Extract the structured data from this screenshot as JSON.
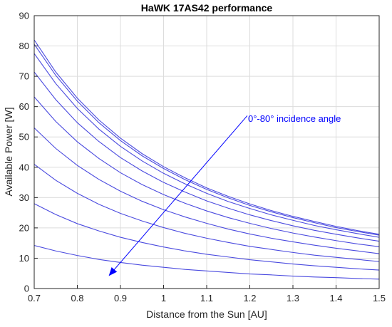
{
  "chart_data": {
    "type": "line",
    "title": "HaWK 17AS42 performance",
    "xlabel": "Distance from the Sun [AU]",
    "ylabel": "Available Power [W]",
    "xlim": [
      0.7,
      1.5
    ],
    "ylim": [
      0,
      90
    ],
    "xticks": [
      "0.7",
      "0.8",
      "0.9",
      "1",
      "1.1",
      "1.2",
      "1.3",
      "1.4",
      "1.5"
    ],
    "yticks": [
      "0",
      "10",
      "20",
      "30",
      "40",
      "50",
      "60",
      "70",
      "80",
      "90"
    ],
    "grid": true,
    "line_color": "#4a4adf",
    "annotation": {
      "text": "0°-80° incidence angle",
      "color": "#0000ff",
      "arrow_from": [
        1.194,
        57.0
      ],
      "arrow_to": [
        0.875,
        4.5
      ]
    },
    "x": [
      0.7,
      0.75,
      0.8,
      0.85,
      0.9,
      0.95,
      1.0,
      1.05,
      1.1,
      1.15,
      1.2,
      1.25,
      1.3,
      1.35,
      1.4,
      1.45,
      1.5
    ],
    "series": [
      {
        "values": [
          82.0,
          71.4,
          62.8,
          55.6,
          49.6,
          44.5,
          40.2,
          36.5,
          33.2,
          30.4,
          27.9,
          25.7,
          23.8,
          22.1,
          20.5,
          19.1,
          17.9
        ]
      },
      {
        "values": [
          80.6,
          70.3,
          61.8,
          54.7,
          48.8,
          43.8,
          39.6,
          35.9,
          32.7,
          29.9,
          27.4,
          25.3,
          23.4,
          21.7,
          20.1,
          18.8,
          17.6
        ]
      },
      {
        "values": [
          77.5,
          67.6,
          59.4,
          52.6,
          46.9,
          42.1,
          38.0,
          34.5,
          31.4,
          28.7,
          26.4,
          24.3,
          22.5,
          20.8,
          19.4,
          18.1,
          16.9
        ]
      },
      {
        "values": [
          71.4,
          62.3,
          54.7,
          48.5,
          43.2,
          38.8,
          35.0,
          31.8,
          28.9,
          26.5,
          24.3,
          22.4,
          20.7,
          19.2,
          17.9,
          16.7,
          15.6
        ]
      },
      {
        "values": [
          63.2,
          55.1,
          48.4,
          42.9,
          38.2,
          34.3,
          31.0,
          28.1,
          25.6,
          23.4,
          21.5,
          19.8,
          18.3,
          17.0,
          15.8,
          14.7,
          13.8
        ]
      },
      {
        "values": [
          53.0,
          46.2,
          40.6,
          36.0,
          32.1,
          28.8,
          26.0,
          23.6,
          21.5,
          19.6,
          18.0,
          16.6,
          15.4,
          14.3,
          13.3,
          12.4,
          11.5
        ]
      },
      {
        "values": [
          41.0,
          35.7,
          31.4,
          27.8,
          24.8,
          22.3,
          20.1,
          18.2,
          16.6,
          15.2,
          13.9,
          12.9,
          11.9,
          11.0,
          10.3,
          9.6,
          8.9
        ]
      },
      {
        "values": [
          28.0,
          24.4,
          21.4,
          19.0,
          16.9,
          15.2,
          13.7,
          12.4,
          11.3,
          10.4,
          9.5,
          8.8,
          8.1,
          7.5,
          7.0,
          6.5,
          6.1
        ]
      },
      {
        "values": [
          14.2,
          12.4,
          10.9,
          9.6,
          8.6,
          7.7,
          7.0,
          6.3,
          5.8,
          5.3,
          4.8,
          4.5,
          4.1,
          3.8,
          3.6,
          3.3,
          3.1
        ]
      }
    ]
  }
}
